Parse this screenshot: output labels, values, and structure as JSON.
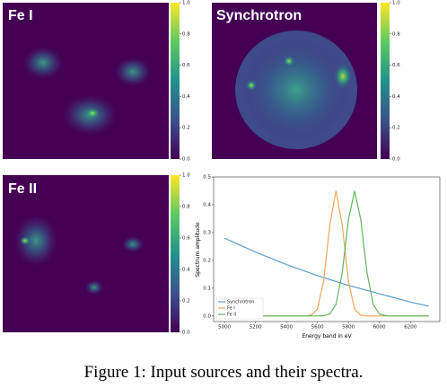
{
  "panels": [
    {
      "label": "Fe I"
    },
    {
      "label": "Synchrotron"
    },
    {
      "label": "Fe II"
    }
  ],
  "colorbar": {
    "ticks": [
      {
        "value": 0,
        "label": "0.0"
      },
      0.2,
      0.4,
      0.6,
      0.8,
      {
        "value": 1,
        "label": "1.0"
      }
    ]
  },
  "chart_data": {
    "type": "line",
    "xlabel": "Energy band in eV",
    "ylabel": "Spectrum amplitude",
    "x": [
      5000,
      5040,
      5080,
      5120,
      5160,
      5200,
      5240,
      5280,
      5320,
      5360,
      5400,
      5440,
      5480,
      5520,
      5560,
      5600,
      5640,
      5680,
      5720,
      5760,
      5800,
      5840,
      5880,
      5920,
      5960,
      6000,
      6040,
      6080,
      6120,
      6160,
      6200,
      6240,
      6280,
      6320
    ],
    "series": [
      {
        "name": "Synchrotron",
        "color": "#5b9fcc",
        "values": [
          0.28,
          0.27,
          0.26,
          0.25,
          0.24,
          0.23,
          0.221,
          0.212,
          0.203,
          0.194,
          0.185,
          0.177,
          0.169,
          0.161,
          0.153,
          0.145,
          0.138,
          0.131,
          0.124,
          0.117,
          0.11,
          0.104,
          0.098,
          0.092,
          0.086,
          0.08,
          0.074,
          0.068,
          0.062,
          0.056,
          0.05,
          0.045,
          0.04,
          0.035
        ]
      },
      {
        "name": "Fe I",
        "color": "#f5a55a",
        "values": [
          0,
          0,
          0,
          0,
          0,
          0,
          0,
          0,
          0,
          0,
          0,
          0,
          0,
          0,
          0.003,
          0.025,
          0.125,
          0.327,
          0.45,
          0.327,
          0.125,
          0.025,
          0.003,
          0,
          0,
          0,
          0,
          0,
          0,
          0,
          0,
          0,
          0,
          0
        ]
      },
      {
        "name": "Fe II",
        "color": "#5cb85c",
        "values": [
          0,
          0,
          0,
          0,
          0,
          0,
          0,
          0,
          0,
          0,
          0,
          0,
          0,
          0,
          0,
          0,
          0.001,
          0.007,
          0.042,
          0.156,
          0.346,
          0.45,
          0.346,
          0.156,
          0.042,
          0.007,
          0.001,
          0,
          0,
          0,
          0,
          0,
          0,
          0
        ]
      }
    ],
    "xlim": [
      4930,
      6390
    ],
    "ylim": [
      -0.02,
      0.5
    ],
    "xticks": [
      5000,
      5200,
      5400,
      5600,
      5800,
      6000,
      6200
    ],
    "yticks": [
      {
        "value": 0,
        "label": "0.0"
      },
      0.1,
      0.2,
      0.3,
      0.4,
      0.5
    ],
    "legend": "lower left"
  },
  "caption": "Figure 1: Input sources and their spectra."
}
